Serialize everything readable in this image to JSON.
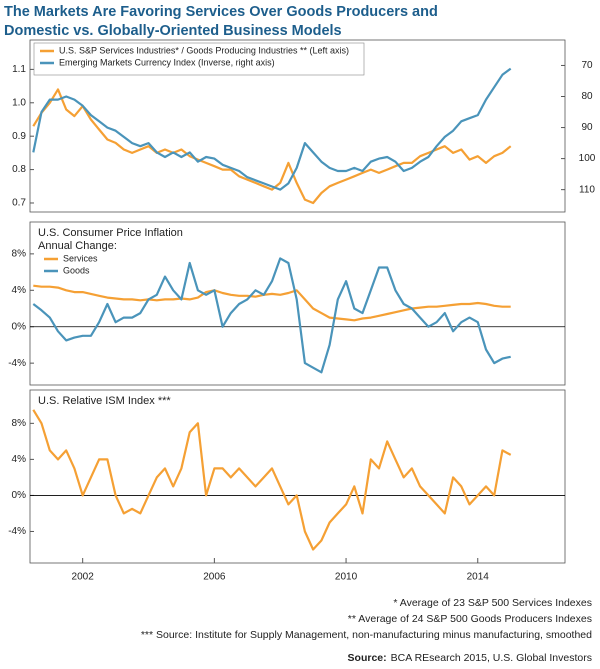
{
  "title": [
    "The Markets Are Favoring Services Over Goods Producers and",
    "Domestic vs. Globally-Oriented Business Models"
  ],
  "chart_data": [
    {
      "type": "line",
      "x": [
        2000.5,
        2000.75,
        2001,
        2001.25,
        2001.5,
        2001.75,
        2002,
        2002.25,
        2002.5,
        2002.75,
        2003,
        2003.25,
        2003.5,
        2003.75,
        2004,
        2004.25,
        2004.5,
        2004.75,
        2005,
        2005.25,
        2005.5,
        2005.75,
        2006,
        2006.25,
        2006.5,
        2006.75,
        2007,
        2007.25,
        2007.5,
        2007.75,
        2008,
        2008.25,
        2008.5,
        2008.75,
        2009,
        2009.25,
        2009.5,
        2009.75,
        2010,
        2010.25,
        2010.5,
        2010.75,
        2011,
        2011.25,
        2011.5,
        2011.75,
        2012,
        2012.25,
        2012.5,
        2012.75,
        2013,
        2013.25,
        2013.5,
        2013.75,
        2014,
        2014.25,
        2014.5,
        2014.75,
        2015
      ],
      "xlim": [
        2000.4,
        2016.65
      ],
      "ylim": [
        0.673,
        1.188
      ],
      "yticks": [
        0.7,
        0.8,
        0.9,
        {
          "value": 1,
          "label": "1.0"
        },
        1.1
      ],
      "y2lim": [
        61.8,
        117.2
      ],
      "y2ticks": [
        70,
        80,
        90,
        100,
        110
      ],
      "y2_inverted": true,
      "series": [
        {
          "name": "U.S. S&P Services Industries* / Goods Producing Industries ** (Left axis)",
          "color": "#f5a034",
          "values": [
            0.93,
            0.97,
            1.0,
            1.04,
            0.98,
            0.96,
            0.99,
            0.95,
            0.92,
            0.89,
            0.88,
            0.86,
            0.85,
            0.86,
            0.87,
            0.85,
            0.86,
            0.85,
            0.86,
            0.84,
            0.83,
            0.82,
            0.81,
            0.8,
            0.8,
            0.78,
            0.77,
            0.76,
            0.75,
            0.74,
            0.76,
            0.82,
            0.76,
            0.71,
            0.7,
            0.73,
            0.75,
            0.76,
            0.77,
            0.78,
            0.79,
            0.8,
            0.79,
            0.8,
            0.81,
            0.82,
            0.82,
            0.84,
            0.85,
            0.86,
            0.87,
            0.85,
            0.86,
            0.83,
            0.84,
            0.82,
            0.84,
            0.85,
            0.87
          ]
        },
        {
          "name": "Emerging Markets Currency Index (Inverse, right axis)",
          "color": "#4a94ba",
          "axis": "y2",
          "values": [
            98,
            85,
            81,
            81,
            80,
            81,
            83,
            86,
            88,
            90,
            91,
            93,
            95,
            96,
            95,
            98,
            99.5,
            98,
            99.5,
            98,
            101,
            99.5,
            100,
            102,
            103,
            104,
            106,
            107,
            108,
            109,
            110,
            108,
            103,
            95,
            98,
            101,
            103,
            104,
            104,
            103,
            104,
            101,
            100,
            99.5,
            101,
            104,
            103,
            101,
            99.5,
            96,
            93,
            91,
            88,
            87,
            86,
            81,
            77,
            73,
            71
          ]
        }
      ]
    },
    {
      "type": "line",
      "title": [
        "U.S. Consumer Price Inflation",
        "Annual Change:"
      ],
      "x": [
        2000.5,
        2000.75,
        2001,
        2001.25,
        2001.5,
        2001.75,
        2002,
        2002.25,
        2002.5,
        2002.75,
        2003,
        2003.25,
        2003.5,
        2003.75,
        2004,
        2004.25,
        2004.5,
        2004.75,
        2005,
        2005.25,
        2005.5,
        2005.75,
        2006,
        2006.25,
        2006.5,
        2006.75,
        2007,
        2007.25,
        2007.5,
        2007.75,
        2008,
        2008.25,
        2008.5,
        2008.75,
        2009,
        2009.25,
        2009.5,
        2009.75,
        2010,
        2010.25,
        2010.5,
        2010.75,
        2011,
        2011.25,
        2011.5,
        2011.75,
        2012,
        2012.25,
        2012.5,
        2012.75,
        2013,
        2013.25,
        2013.5,
        2013.75,
        2014,
        2014.25,
        2014.5,
        2014.75,
        2015
      ],
      "xlim": [
        2000.4,
        2016.65
      ],
      "ylim": [
        -6.4,
        11.5
      ],
      "yticks": [
        {
          "value": -4,
          "label": "-4%"
        },
        {
          "value": 0,
          "label": "0%"
        },
        {
          "value": 4,
          "label": "4%"
        },
        {
          "value": 8,
          "label": "8%"
        }
      ],
      "zero_line": true,
      "series": [
        {
          "name": "Services",
          "color": "#f5a034",
          "values": [
            4.5,
            4.4,
            4.4,
            4.3,
            4.0,
            3.8,
            3.8,
            3.6,
            3.4,
            3.2,
            3.1,
            3.0,
            3.0,
            2.9,
            3.0,
            2.9,
            3.0,
            3.0,
            3.1,
            3.0,
            3.2,
            3.8,
            4.0,
            3.7,
            3.5,
            3.4,
            3.4,
            3.3,
            3.5,
            3.6,
            3.5,
            3.7,
            4.0,
            3.0,
            2.0,
            1.5,
            1.0,
            0.9,
            0.8,
            0.7,
            0.9,
            1.0,
            1.2,
            1.4,
            1.6,
            1.8,
            2.0,
            2.1,
            2.2,
            2.2,
            2.3,
            2.4,
            2.5,
            2.5,
            2.6,
            2.5,
            2.3,
            2.2,
            2.2
          ]
        },
        {
          "name": "Goods",
          "color": "#4a94ba",
          "values": [
            2.5,
            1.8,
            1.0,
            -0.5,
            -1.5,
            -1.2,
            -1.0,
            -1.0,
            0.5,
            2.5,
            0.5,
            1.0,
            1.0,
            1.5,
            3.0,
            3.5,
            5.5,
            4.0,
            3.0,
            7.0,
            4.0,
            3.5,
            4.0,
            0.0,
            1.5,
            2.5,
            3.0,
            4.0,
            3.5,
            5.0,
            7.5,
            7.0,
            3.0,
            -4.0,
            -4.5,
            -5.0,
            -2.0,
            3.0,
            5.0,
            2.0,
            1.5,
            4.0,
            6.5,
            6.5,
            4.0,
            2.5,
            2.0,
            1.0,
            0.0,
            0.5,
            1.5,
            -0.5,
            0.5,
            1.0,
            0.5,
            -2.5,
            -4.0,
            -3.5,
            -3.3
          ]
        }
      ]
    },
    {
      "type": "line",
      "title": "U.S. Relative ISM Index ***",
      "x": [
        2000.5,
        2000.75,
        2001,
        2001.25,
        2001.5,
        2001.75,
        2002,
        2002.25,
        2002.5,
        2002.75,
        2003,
        2003.25,
        2003.5,
        2003.75,
        2004,
        2004.25,
        2004.5,
        2004.75,
        2005,
        2005.25,
        2005.5,
        2005.75,
        2006,
        2006.25,
        2006.5,
        2006.75,
        2007,
        2007.25,
        2007.5,
        2007.75,
        2008,
        2008.25,
        2008.5,
        2008.75,
        2009,
        2009.25,
        2009.5,
        2009.75,
        2010,
        2010.25,
        2010.5,
        2010.75,
        2011,
        2011.25,
        2011.5,
        2011.75,
        2012,
        2012.25,
        2012.5,
        2012.75,
        2013,
        2013.25,
        2013.5,
        2013.75,
        2014,
        2014.25,
        2014.5,
        2014.75,
        2015
      ],
      "xlim": [
        2000.4,
        2016.65
      ],
      "xticks": [
        2002,
        2006,
        2010,
        2014
      ],
      "ylim": [
        -7.5,
        11.7
      ],
      "yticks": [
        {
          "value": -4,
          "label": "-4%"
        },
        {
          "value": 0,
          "label": "0%"
        },
        {
          "value": 4,
          "label": "4%"
        },
        {
          "value": 8,
          "label": "8%"
        }
      ],
      "zero_line": true,
      "color": "#f5a034",
      "values": [
        9.5,
        8,
        5,
        4,
        5,
        3,
        0,
        2,
        4,
        4,
        0,
        -2,
        -1.5,
        -2,
        0,
        2,
        3,
        1,
        3,
        7,
        8,
        0,
        3,
        3,
        2,
        3,
        2,
        1,
        2,
        3,
        1,
        -1,
        0,
        -4,
        -6,
        -5,
        -3,
        -2,
        -1,
        1,
        -2,
        4,
        3,
        6,
        4,
        2,
        3,
        1,
        0,
        -1,
        -2,
        2,
        1,
        -1,
        0,
        1,
        0,
        5,
        4.5
      ]
    }
  ],
  "footnotes": [
    "* Average of 23 S&P 500 Services Indexes",
    "** Average of 24 S&P 500 Goods Producers Indexes",
    "*** Source: Institute for Supply Management, non-manufacturing minus manufacturing, smoothed"
  ],
  "source_label": "Source:",
  "source": "BCA REsearch 2015, U.S. Global Investors"
}
